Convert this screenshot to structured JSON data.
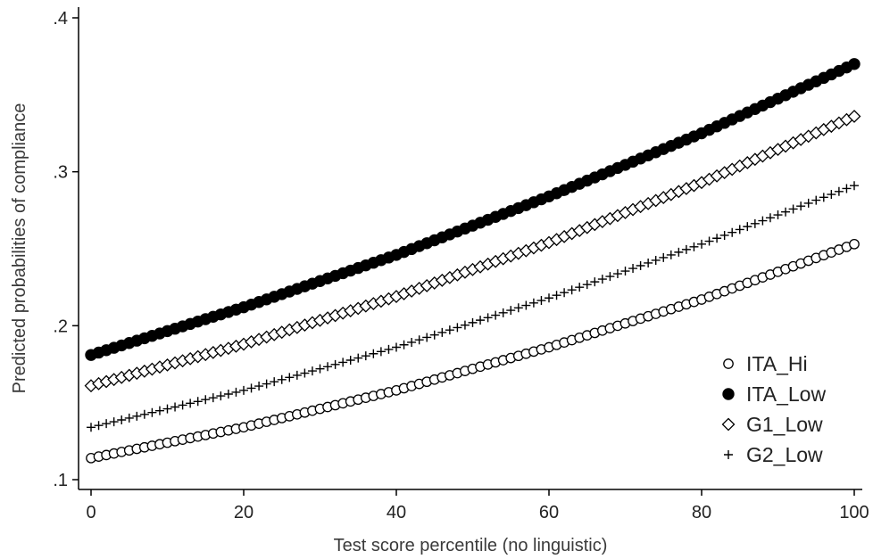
{
  "chart_data": {
    "type": "scatter",
    "title": "",
    "xlabel": "Test score percentile (no linguistic)",
    "ylabel": "Predicted probabilities of compliance",
    "xlim": [
      0,
      100
    ],
    "ylim": [
      0.1,
      0.4
    ],
    "xticks": [
      0,
      20,
      40,
      60,
      80,
      100
    ],
    "xtick_labels": [
      "0",
      "20",
      "40",
      "60",
      "80",
      "100"
    ],
    "yticks": [
      0.1,
      0.2,
      0.3,
      0.4
    ],
    "ytick_labels": [
      ".1",
      ".2",
      ".3",
      ".4"
    ],
    "grid": false,
    "legend_position": "bottom-right",
    "marker_color": "#000000",
    "points_per_series": 101,
    "x_start": 0,
    "x_step": 1,
    "series": [
      {
        "name": "ITA_Hi",
        "marker": "hollow-circle",
        "x": [
          0,
          20,
          40,
          60,
          80,
          100
        ],
        "y": [
          0.114,
          0.134,
          0.158,
          0.186,
          0.217,
          0.253
        ]
      },
      {
        "name": "ITA_Low",
        "marker": "filled-circle",
        "x": [
          0,
          20,
          40,
          60,
          80,
          100
        ],
        "y": [
          0.181,
          0.212,
          0.246,
          0.284,
          0.325,
          0.37
        ]
      },
      {
        "name": "G1_Low",
        "marker": "hollow-diamond",
        "x": [
          0,
          20,
          40,
          60,
          80,
          100
        ],
        "y": [
          0.161,
          0.188,
          0.219,
          0.254,
          0.293,
          0.336
        ]
      },
      {
        "name": "G2_Low",
        "marker": "plus",
        "x": [
          0,
          20,
          40,
          60,
          80,
          100
        ],
        "y": [
          0.134,
          0.158,
          0.186,
          0.218,
          0.253,
          0.291
        ]
      }
    ]
  }
}
